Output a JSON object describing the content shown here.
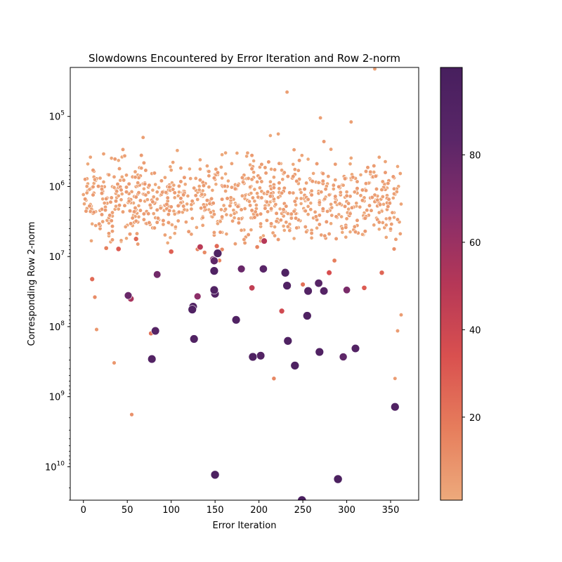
{
  "chart_data": {
    "type": "scatter",
    "title": "Slowdowns Encountered by Error Iteration and Row 2-norm",
    "xlabel": "Error Iteration",
    "ylabel": "Corresponding Row 2-norm",
    "xlim": [
      -15,
      382
    ],
    "xticks": [
      0,
      50,
      100,
      150,
      200,
      250,
      300,
      350
    ],
    "y_scale": "log",
    "y_inverted": true,
    "ylim_top": 20000,
    "ylim_bottom": 30000000000,
    "yticks": [
      {
        "value": 100000,
        "base": "10",
        "exp": "5"
      },
      {
        "value": 1000000,
        "base": "10",
        "exp": "6"
      },
      {
        "value": 10000000,
        "base": "10",
        "exp": "7"
      },
      {
        "value": 100000000,
        "base": "10",
        "exp": "8"
      },
      {
        "value": 1000000000,
        "base": "10",
        "exp": "9"
      },
      {
        "value": 10000000000,
        "base": "10",
        "exp": "10"
      }
    ],
    "colorbar": {
      "range": [
        1,
        100
      ],
      "ticks": [
        "20",
        "40",
        "60",
        "80"
      ],
      "tick_values": [
        20,
        40,
        60,
        80
      ],
      "colormap": "flare",
      "stops": [
        "#edaa7c",
        "#e67d5c",
        "#d9504f",
        "#b53757",
        "#862d6a",
        "#5a2668",
        "#471f5e"
      ]
    },
    "grid": false,
    "legend": "none",
    "points": [
      [
        150,
        13000000000,
        95
      ],
      [
        249,
        30000000000,
        97
      ],
      [
        290,
        15000000000,
        96
      ],
      [
        355,
        1400000000,
        92
      ],
      [
        82,
        115000000,
        88
      ],
      [
        78,
        290000000,
        90
      ],
      [
        126,
        150000000,
        91
      ],
      [
        174,
        80000000,
        92
      ],
      [
        193,
        270000000,
        93
      ],
      [
        202,
        260000000,
        90
      ],
      [
        233,
        160000000,
        93
      ],
      [
        241,
        360000000,
        94
      ],
      [
        255,
        70000000,
        93
      ],
      [
        269,
        230000000,
        92
      ],
      [
        296,
        270000000,
        82
      ],
      [
        310,
        205000000,
        90
      ],
      [
        124,
        57000000,
        92
      ],
      [
        125,
        52000000,
        91
      ],
      [
        149,
        16000000,
        92
      ],
      [
        149,
        30000000,
        91
      ],
      [
        150,
        34000000,
        89
      ],
      [
        153,
        9000000,
        93
      ],
      [
        232,
        26000000,
        92
      ],
      [
        230,
        17000000,
        93
      ],
      [
        256,
        31000000,
        90
      ],
      [
        274,
        31000000,
        88
      ],
      [
        268,
        24000000,
        86
      ],
      [
        205,
        15000000,
        84
      ],
      [
        149,
        11500000,
        82
      ],
      [
        180,
        15000000,
        78
      ],
      [
        51,
        36000000,
        78
      ],
      [
        84,
        18000000,
        75
      ],
      [
        148,
        11000000,
        70
      ],
      [
        300,
        30000000,
        72
      ],
      [
        130,
        37000000,
        65
      ],
      [
        54,
        40000000,
        55
      ],
      [
        206,
        6000000,
        50
      ],
      [
        133,
        7300000,
        48
      ],
      [
        192,
        28000000,
        45
      ],
      [
        226,
        60000000,
        38
      ],
      [
        280,
        17000000,
        35
      ],
      [
        40,
        7800000,
        30
      ],
      [
        60,
        5600000,
        25
      ],
      [
        250,
        25000000,
        22
      ],
      [
        100,
        8500000,
        28
      ],
      [
        320,
        28000000,
        30
      ],
      [
        340,
        17000000,
        26
      ],
      [
        10,
        21000000,
        24
      ],
      [
        77,
        125000000,
        22
      ],
      [
        55,
        1800000000,
        10
      ],
      [
        13,
        38000000,
        12
      ],
      [
        217,
        550000000,
        14
      ],
      [
        15,
        110000000,
        8
      ],
      [
        35,
        330000000,
        8
      ],
      [
        358,
        115000000,
        6
      ],
      [
        355,
        550000000,
        6
      ],
      [
        362,
        68000000,
        6
      ],
      [
        332,
        21000,
        5
      ],
      [
        232,
        45000,
        5
      ],
      [
        270,
        105000,
        5
      ],
      [
        305,
        120000,
        5
      ],
      [
        68,
        200000,
        5
      ]
    ]
  }
}
